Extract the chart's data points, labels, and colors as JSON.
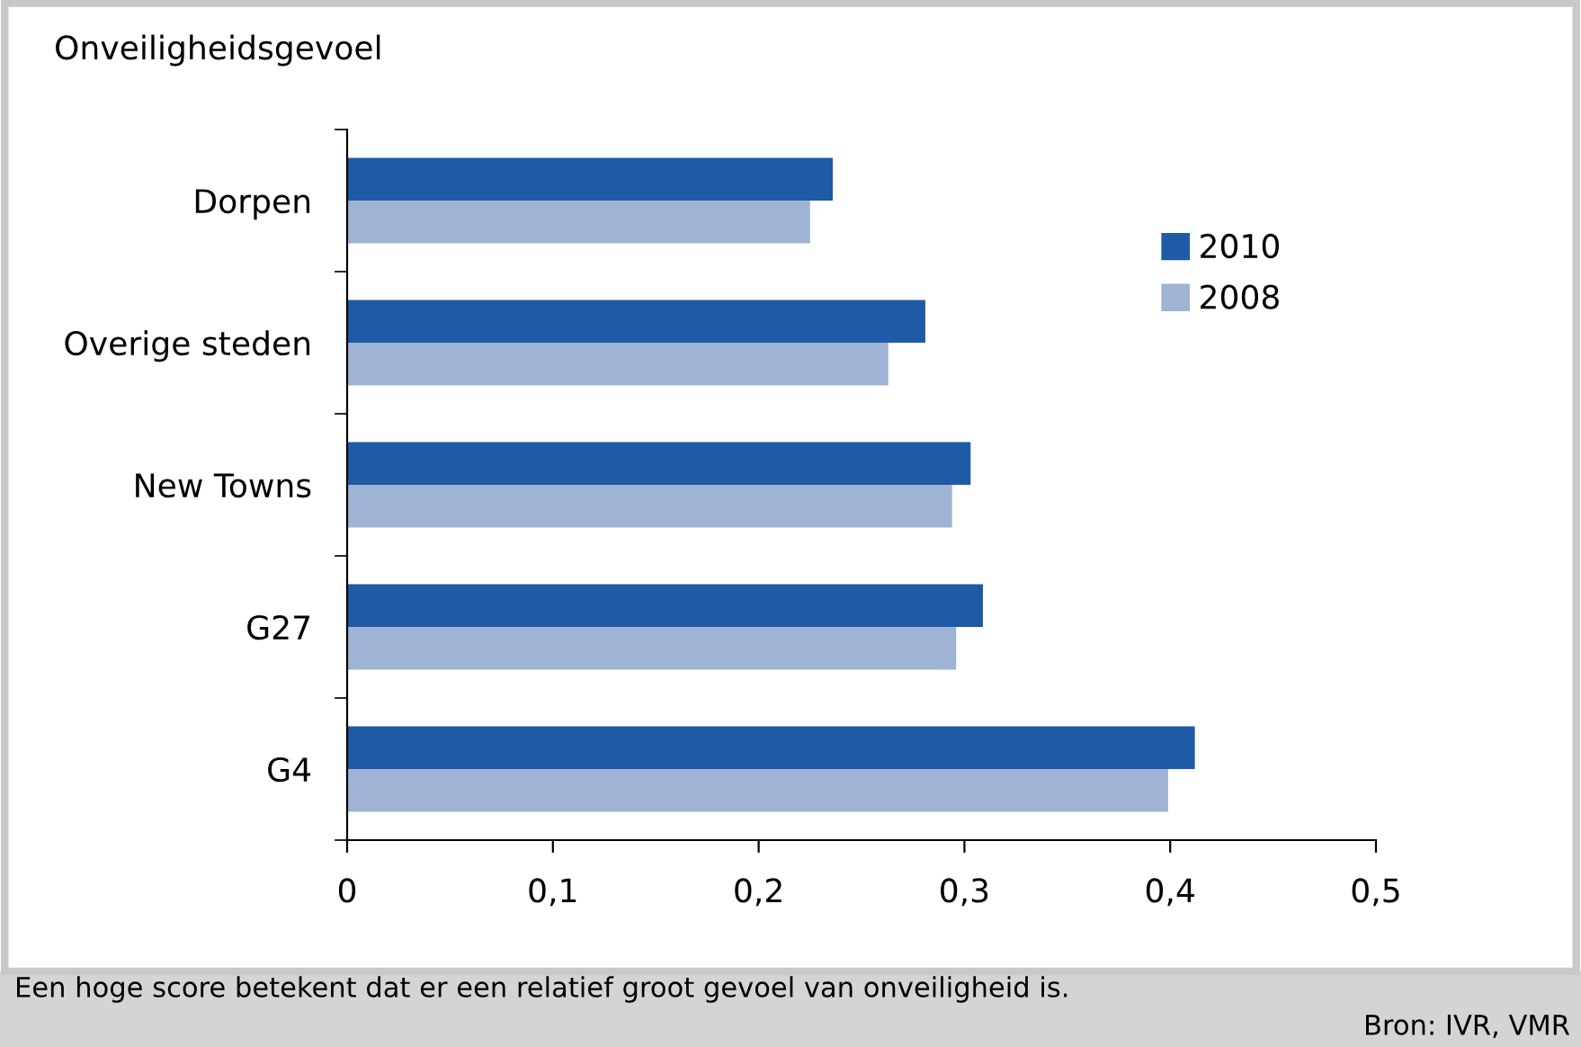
{
  "chart_data": {
    "type": "bar",
    "orientation": "horizontal",
    "title": "Onveiligheidsgevoel",
    "categories": [
      "Dorpen",
      "Overige steden",
      "New Towns",
      "G27",
      "G4"
    ],
    "series": [
      {
        "name": "2010",
        "color": "#1f5aa6",
        "values": [
          0.236,
          0.281,
          0.303,
          0.309,
          0.412
        ]
      },
      {
        "name": "2008",
        "color": "#9fb3d4",
        "values": [
          0.225,
          0.263,
          0.294,
          0.296,
          0.399
        ]
      }
    ],
    "xlim": [
      0,
      0.5
    ],
    "xticks": [
      {
        "value": 0,
        "label": "0"
      },
      {
        "value": 0.1,
        "label": "0,1"
      },
      {
        "value": 0.2,
        "label": "0,2"
      },
      {
        "value": 0.3,
        "label": "0,3"
      },
      {
        "value": 0.4,
        "label": "0,4"
      },
      {
        "value": 0.5,
        "label": "0,5"
      }
    ],
    "grid": false,
    "legend": "top right",
    "annotations": [
      "Een hoge score betekent dat er een relatief groot gevoel van onveiligheid is.",
      "Bron: IVR, VMR"
    ]
  }
}
